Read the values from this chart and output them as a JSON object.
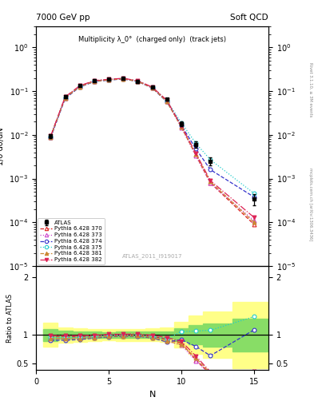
{
  "title_left": "7000 GeV pp",
  "title_right": "Soft QCD",
  "plot_title": "Multiplicity λ_0°  (charged only)  (track jets)",
  "xlabel": "N",
  "ylabel_main": "1/σ dσ/dN",
  "ylabel_ratio": "Ratio to ATLAS",
  "watermark": "ATLAS_2011_I919017",
  "right_label": "mcplots.cern.ch [arXiv:1306.3436]",
  "rivet_label": "Rivet 3.1.10, ≥ 3M events",
  "N_atlas": [
    1,
    2,
    3,
    4,
    5,
    6,
    7,
    8,
    9,
    10,
    11,
    12,
    15
  ],
  "atlas_y": [
    0.0095,
    0.075,
    0.135,
    0.175,
    0.185,
    0.195,
    0.17,
    0.125,
    0.065,
    0.018,
    0.006,
    0.0025,
    0.00035
  ],
  "atlas_yerr": [
    0.001,
    0.005,
    0.008,
    0.009,
    0.009,
    0.01,
    0.009,
    0.007,
    0.004,
    0.002,
    0.001,
    0.0005,
    0.0001
  ],
  "N_mc": [
    1,
    2,
    3,
    4,
    5,
    6,
    7,
    8,
    9,
    10,
    11,
    12,
    15
  ],
  "py370_y": [
    0.0092,
    0.073,
    0.13,
    0.172,
    0.185,
    0.195,
    0.17,
    0.122,
    0.06,
    0.0155,
    0.0034,
    0.0008,
    9e-05
  ],
  "py373_y": [
    0.0088,
    0.07,
    0.127,
    0.169,
    0.182,
    0.193,
    0.168,
    0.12,
    0.058,
    0.0148,
    0.0033,
    0.00078,
    0.00011
  ],
  "py374_y": [
    0.0086,
    0.068,
    0.124,
    0.165,
    0.179,
    0.19,
    0.166,
    0.118,
    0.057,
    0.0165,
    0.0048,
    0.0016,
    0.00038
  ],
  "py375_y": [
    0.0091,
    0.072,
    0.129,
    0.171,
    0.184,
    0.194,
    0.17,
    0.122,
    0.061,
    0.019,
    0.0064,
    0.0027,
    0.00046
  ],
  "py381_y": [
    0.0089,
    0.07,
    0.126,
    0.167,
    0.18,
    0.191,
    0.167,
    0.119,
    0.058,
    0.015,
    0.0036,
    0.00085,
    0.0001
  ],
  "py382_y": [
    0.0094,
    0.074,
    0.133,
    0.174,
    0.187,
    0.197,
    0.173,
    0.124,
    0.062,
    0.016,
    0.0038,
    0.0009,
    0.00013
  ],
  "series": [
    {
      "label": "Pythia 6.428 370",
      "color": "#dd2222",
      "linestyle": "--",
      "marker": "^",
      "filled": false
    },
    {
      "label": "Pythia 6.428 373",
      "color": "#cc44cc",
      "linestyle": ":",
      "marker": "^",
      "filled": false
    },
    {
      "label": "Pythia 6.428 374",
      "color": "#3333cc",
      "linestyle": "--",
      "marker": "o",
      "filled": false
    },
    {
      "label": "Pythia 6.428 375",
      "color": "#22cccc",
      "linestyle": ":",
      "marker": "o",
      "filled": false
    },
    {
      "label": "Pythia 6.428 381",
      "color": "#cc8833",
      "linestyle": "--",
      "marker": "^",
      "filled": true
    },
    {
      "label": "Pythia 6.428 382",
      "color": "#dd2255",
      "linestyle": "-.",
      "marker": "v",
      "filled": true
    }
  ],
  "ylim_main": [
    1e-05,
    3.0
  ],
  "ylim_ratio": [
    0.39,
    2.19
  ],
  "xlim": [
    0,
    16
  ],
  "ratio_yticks": [
    0.5,
    1.0,
    2.0
  ]
}
